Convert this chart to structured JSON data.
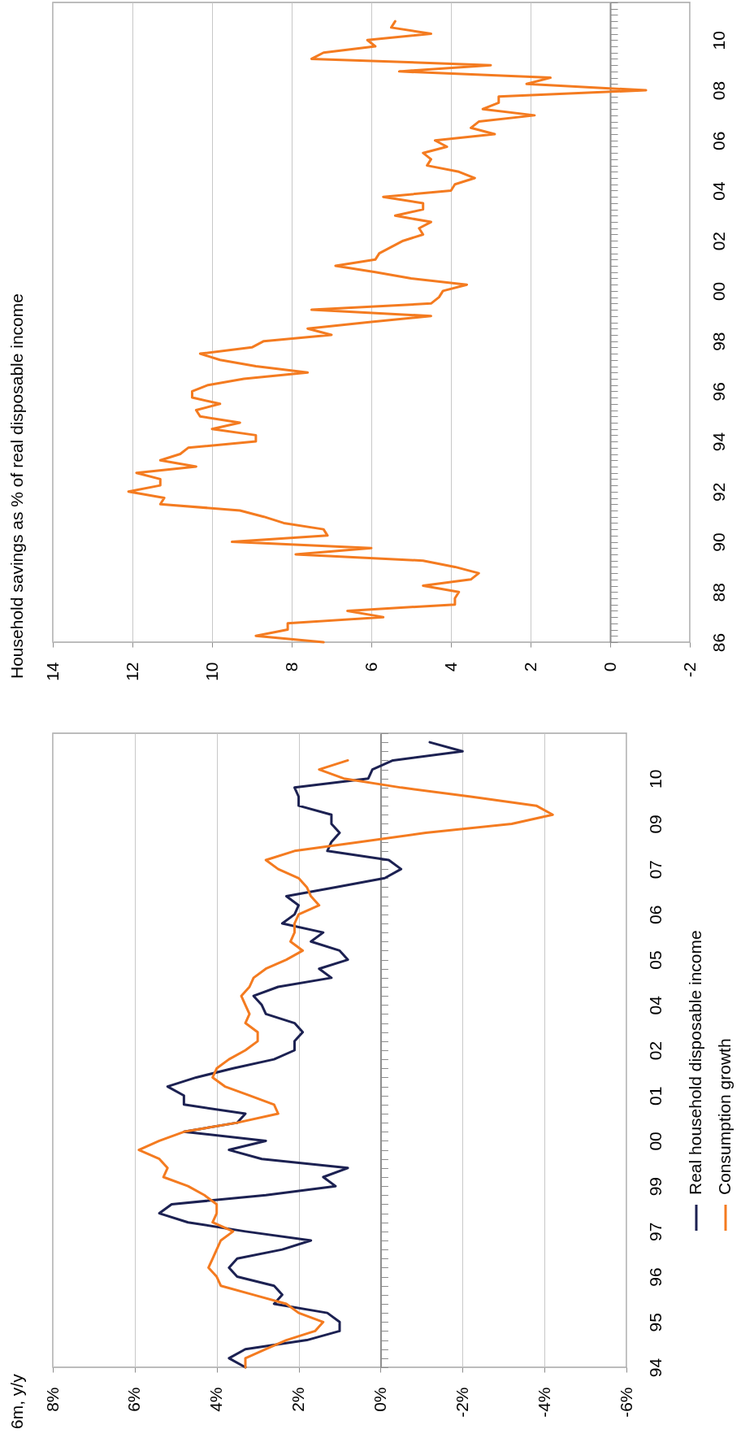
{
  "chart_data": [
    {
      "type": "line",
      "title": "Household savings as % of real disposable income",
      "orientation": "horizontal",
      "categories": [
        null,
        null,
        null,
        null,
        null,
        null,
        "10",
        null,
        null,
        null,
        null,
        null,
        null,
        null,
        "08",
        null,
        null,
        null,
        null,
        null,
        null,
        null,
        "06",
        null,
        null,
        null,
        null,
        null,
        null,
        null,
        "04",
        null,
        null,
        null,
        null,
        null,
        null,
        null,
        "02",
        null,
        null,
        null,
        null,
        null,
        null,
        null,
        "00",
        null,
        null,
        null,
        null,
        null,
        null,
        null,
        "98",
        null,
        null,
        null,
        null,
        null,
        null,
        null,
        "96",
        null,
        null,
        null,
        null,
        null,
        null,
        null,
        "94",
        null,
        null,
        null,
        null,
        null,
        null,
        null,
        "92",
        null,
        null,
        null,
        null,
        null,
        null,
        null,
        "90",
        null,
        null,
        null,
        null,
        null,
        null,
        null,
        "88",
        null,
        null,
        null,
        null,
        null,
        null,
        null,
        "86"
      ],
      "series": [
        {
          "color": "#f47b20",
          "values": [
            null,
            null,
            null,
            5.4,
            5.5,
            4.5,
            6.1,
            5.9,
            7.2,
            7.5,
            3.0,
            5.3,
            1.5,
            2.1,
            -0.9,
            2.8,
            2.8,
            3.2,
            1.9,
            3.3,
            3.5,
            2.9,
            4.4,
            4.1,
            4.7,
            4.5,
            4.6,
            3.8,
            3.4,
            3.9,
            4.0,
            5.7,
            4.7,
            4.7,
            5.4,
            4.5,
            4.8,
            4.7,
            5.2,
            5.5,
            5.8,
            5.9,
            6.9,
            5.9,
            5.0,
            3.6,
            4.2,
            4.3,
            4.5,
            7.5,
            4.5,
            6.1,
            7.6,
            7.0,
            8.7,
            9.0,
            10.3,
            9.8,
            8.9,
            7.6,
            9.2,
            10.1,
            10.5,
            10.5,
            9.8,
            10.4,
            10.3,
            9.3,
            10.0,
            8.9,
            8.9,
            10.6,
            10.8,
            11.3,
            10.4,
            11.9,
            11.3,
            11.3,
            12.1,
            11.2,
            11.3,
            9.3,
            8.7,
            8.2,
            7.2,
            7.1,
            9.5,
            6.0,
            7.9,
            4.7,
            3.9,
            3.3,
            3.5,
            4.7,
            3.8,
            3.9,
            3.9,
            6.6,
            5.7,
            8.1,
            8.1,
            8.9,
            7.2
          ]
        }
      ],
      "xlim": [
        14,
        -2
      ],
      "xticks": [
        14,
        12,
        10,
        8,
        6,
        4,
        2,
        0,
        -2
      ],
      "grid": "x",
      "legend": false
    },
    {
      "type": "line",
      "annotations": [
        "6m, y/y"
      ],
      "orientation": "horizontal",
      "categories": [
        null,
        null,
        null,
        null,
        null,
        "10",
        null,
        null,
        null,
        null,
        "09",
        null,
        null,
        null,
        null,
        "07",
        null,
        null,
        null,
        null,
        "06",
        null,
        null,
        null,
        null,
        "05",
        null,
        null,
        null,
        null,
        "04",
        null,
        null,
        null,
        null,
        "02",
        null,
        null,
        null,
        null,
        "01",
        null,
        null,
        null,
        null,
        "00",
        null,
        null,
        null,
        null,
        "99",
        null,
        null,
        null,
        null,
        "97",
        null,
        null,
        null,
        null,
        "96",
        null,
        null,
        null,
        null,
        "95",
        null,
        null,
        null,
        null,
        "94"
      ],
      "series": [
        {
          "name": "Real household disposable income",
          "color": "#1c2152",
          "values": [
            null,
            -1.2,
            -2.0,
            -0.3,
            0.2,
            0.3,
            2.1,
            2.0,
            2.0,
            1.2,
            1.2,
            1.0,
            1.2,
            1.3,
            -0.2,
            -0.5,
            -0.1,
            1.1,
            2.3,
            2.0,
            2.1,
            2.4,
            1.4,
            1.7,
            1.0,
            0.8,
            1.5,
            1.2,
            2.5,
            3.1,
            2.9,
            2.8,
            2.1,
            1.9,
            2.1,
            2.1,
            2.6,
            3.6,
            4.5,
            5.2,
            4.8,
            4.8,
            3.3,
            3.5,
            4.8,
            2.8,
            3.7,
            2.9,
            0.8,
            1.4,
            1.1,
            2.8,
            5.1,
            5.4,
            4.7,
            3.3,
            1.7,
            2.4,
            3.5,
            3.7,
            3.5,
            2.6,
            2.4,
            2.6,
            1.3,
            1.0,
            1.0,
            1.8,
            3.3,
            3.7,
            3.3
          ]
        },
        {
          "name": "Consumption growth",
          "color": "#f47b20",
          "values": [
            null,
            null,
            null,
            0.8,
            1.5,
            0.9,
            -0.5,
            -2.2,
            -3.8,
            -4.2,
            -3.2,
            -1.1,
            0.5,
            2.1,
            2.8,
            2.5,
            2.0,
            1.8,
            1.7,
            1.5,
            2.0,
            2.1,
            2.1,
            2.2,
            1.9,
            2.3,
            2.8,
            3.1,
            3.2,
            3.4,
            3.3,
            3.2,
            3.3,
            3.0,
            3.0,
            3.3,
            3.7,
            4.0,
            4.1,
            3.8,
            3.2,
            2.6,
            2.5,
            3.5,
            4.8,
            5.4,
            5.9,
            5.4,
            5.2,
            5.3,
            4.7,
            4.3,
            4.0,
            4.0,
            4.1,
            3.6,
            3.9,
            4.0,
            4.1,
            4.2,
            4.0,
            3.9,
            3.1,
            2.3,
            2.0,
            1.4,
            1.6,
            2.3,
            2.8,
            3.3,
            3.3
          ]
        }
      ],
      "xlim": [
        8,
        -6
      ],
      "xticks": [
        {
          "value": 8,
          "label": "8%"
        },
        {
          "value": 6,
          "label": "6%"
        },
        {
          "value": 4,
          "label": "4%"
        },
        {
          "value": 2,
          "label": "2%"
        },
        {
          "value": 0,
          "label": "0%"
        },
        {
          "value": -2,
          "label": "-2%"
        },
        {
          "value": -4,
          "label": "-4%"
        },
        {
          "value": -6,
          "label": "-6%"
        }
      ],
      "grid": "x",
      "legend": "right"
    }
  ]
}
